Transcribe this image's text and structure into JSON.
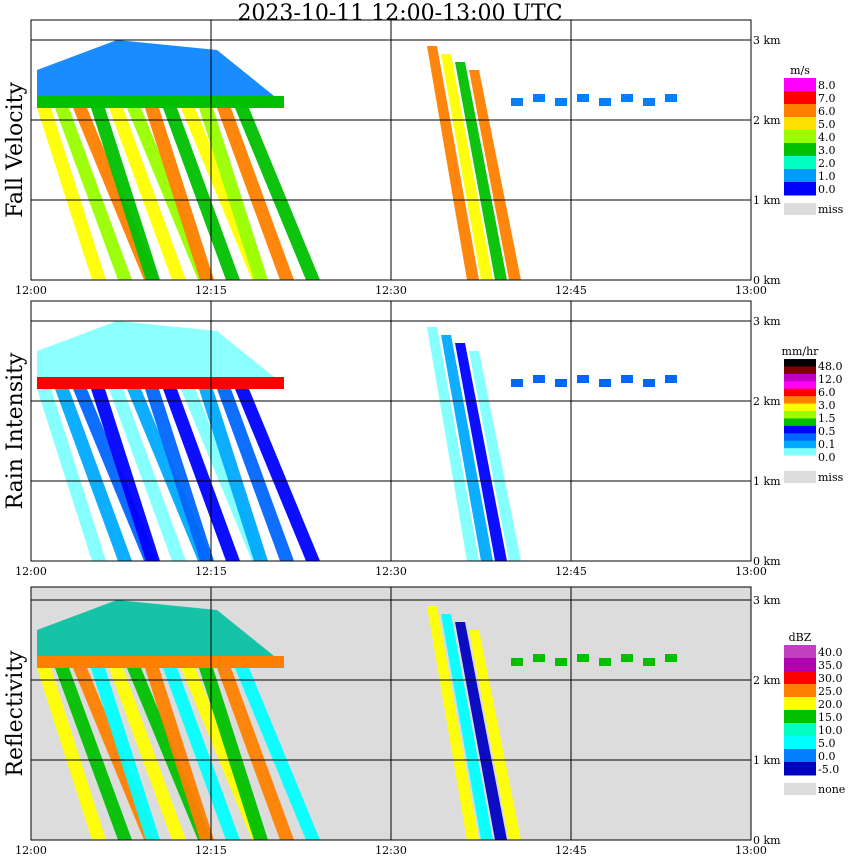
{
  "title": "2023-10-11   12:00-13:00 UTC",
  "colors": {
    "missing_gray": "#dcdcdc",
    "border": "#000000"
  },
  "chart_data": [
    {
      "type": "heatmap",
      "title": "",
      "ylabel": "Fall Velocity",
      "xlabel": "",
      "x_range": [
        "12:00",
        "13:00"
      ],
      "x_ticks": [
        "12:00",
        "12:15",
        "12:30",
        "12:45",
        "13:00"
      ],
      "y_range_km": [
        0,
        3.25
      ],
      "y_ticks": [
        "0 km",
        "1 km",
        "2 km",
        "3 km"
      ],
      "grid": true,
      "colorbar": {
        "unit": "m/s",
        "labels": [
          "8.0",
          "7.0",
          "6.0",
          "5.0",
          "4.0",
          "3.0",
          "2.0",
          "1.0",
          "0.0"
        ],
        "colors": [
          "#ff00ff",
          "#ff0000",
          "#ff7f00",
          "#ffdf00",
          "#99ff00",
          "#00c000",
          "#00ffc0",
          "#0099ff",
          "#0000ff"
        ],
        "missing_label": "miss"
      },
      "echoes": [
        {
          "start_min": 0.5,
          "end_min": 19,
          "base_km": 0,
          "top_km": 3.0,
          "slant_min": 6,
          "dominant_value": "4.0-6.0"
        },
        {
          "start_min": 32,
          "end_min": 40,
          "base_km": 0,
          "top_km": 3.05,
          "slant_min": 5,
          "dominant_value": "5.0-7.0"
        }
      ]
    },
    {
      "type": "heatmap",
      "title": "",
      "ylabel": "Rain Intensity",
      "xlabel": "",
      "x_range": [
        "12:00",
        "13:00"
      ],
      "x_ticks": [
        "12:00",
        "12:15",
        "12:30",
        "12:45",
        "13:00"
      ],
      "y_range_km": [
        0,
        3.25
      ],
      "y_ticks": [
        "0 km",
        "1 km",
        "2 km",
        "3 km"
      ],
      "grid": true,
      "colorbar": {
        "unit": "mm/hr",
        "labels": [
          "48.0",
          "12.0",
          "6.0",
          "3.0",
          "1.5",
          "0.5",
          "0.1",
          "0.0"
        ],
        "colors": [
          "#000000",
          "#7f0000",
          "#c000c0",
          "#ff00ff",
          "#ff0000",
          "#ff7f00",
          "#ffff00",
          "#99ff00",
          "#00c000",
          "#0000ff",
          "#0066ff",
          "#00aaff",
          "#80ffff",
          "#ffffff"
        ],
        "missing_label": "miss"
      },
      "echoes": [
        {
          "start_min": 0.5,
          "end_min": 19,
          "base_km": 0,
          "top_km": 3.0,
          "bright_band_km": 2.2,
          "dominant_value": "0.1-0.5"
        },
        {
          "start_min": 32,
          "end_min": 40,
          "base_km": 0,
          "top_km": 3.05,
          "dominant_value": "0.1"
        }
      ]
    },
    {
      "type": "heatmap",
      "title": "",
      "ylabel": "Reflectivity",
      "xlabel": "",
      "x_range": [
        "12:00",
        "13:00"
      ],
      "x_ticks": [
        "12:00",
        "12:15",
        "12:30",
        "12:45",
        "13:00"
      ],
      "y_range_km": [
        0,
        3.25
      ],
      "y_ticks": [
        "0 km",
        "1 km",
        "2 km",
        "3 km"
      ],
      "grid": true,
      "background": "none",
      "colorbar": {
        "unit": "dBZ",
        "labels": [
          "40.0",
          "35.0",
          "30.0",
          "25.0",
          "20.0",
          "15.0",
          "10.0",
          "5.0",
          "0.0",
          "-5.0"
        ],
        "colors": [
          "#c040c0",
          "#b000b0",
          "#ff0000",
          "#ff7f00",
          "#ffff00",
          "#00c000",
          "#00ffc0",
          "#00ffff",
          "#0080ff",
          "#0000c0"
        ],
        "missing_label": "none"
      },
      "echoes": [
        {
          "start_min": 0.5,
          "end_min": 19,
          "base_km": 0,
          "top_km": 3.0,
          "bright_band_km": 2.2,
          "dominant_value": "15.0-25.0"
        },
        {
          "start_min": 32,
          "end_min": 40,
          "base_km": 0,
          "top_km": 3.05,
          "dominant_value": "10.0-20.0"
        }
      ]
    }
  ]
}
